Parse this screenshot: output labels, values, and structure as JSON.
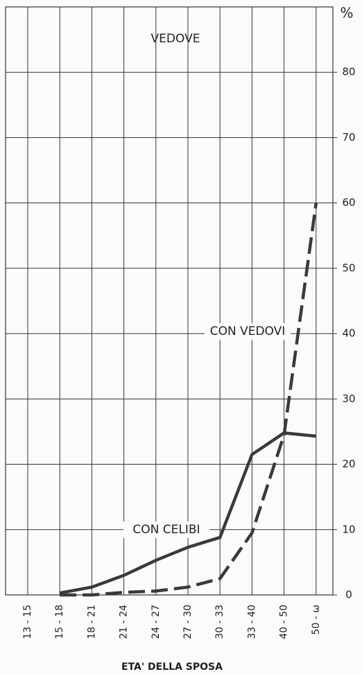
{
  "chart_data": {
    "type": "line",
    "title": "VEDOVE",
    "x_label": "ETA' DELLA SPOSA",
    "y_label": "%",
    "categories": [
      "13 - 15",
      "15 - 18",
      "18 - 21",
      "21 - 24",
      "24 - 27",
      "27 - 30",
      "30 - 33",
      "33 - 40",
      "40 - 50",
      "50 - ω"
    ],
    "series": [
      {
        "name": "CON CELIBI",
        "color": "#3a3a3a",
        "dashed": false,
        "values": [
          null,
          0.3,
          1.2,
          3,
          5.3,
          7.3,
          8.8,
          21.5,
          24.8,
          24.3
        ]
      },
      {
        "name": "CON VEDOVI",
        "color": "#3a3a3a",
        "dashed": true,
        "values": [
          null,
          0,
          0,
          0.4,
          0.6,
          1.2,
          2.5,
          9.5,
          24.5,
          60
        ]
      }
    ],
    "ylim": [
      0,
      90
    ],
    "yticks": [
      0,
      10,
      20,
      30,
      40,
      50,
      60,
      70,
      80
    ],
    "grid": true
  }
}
